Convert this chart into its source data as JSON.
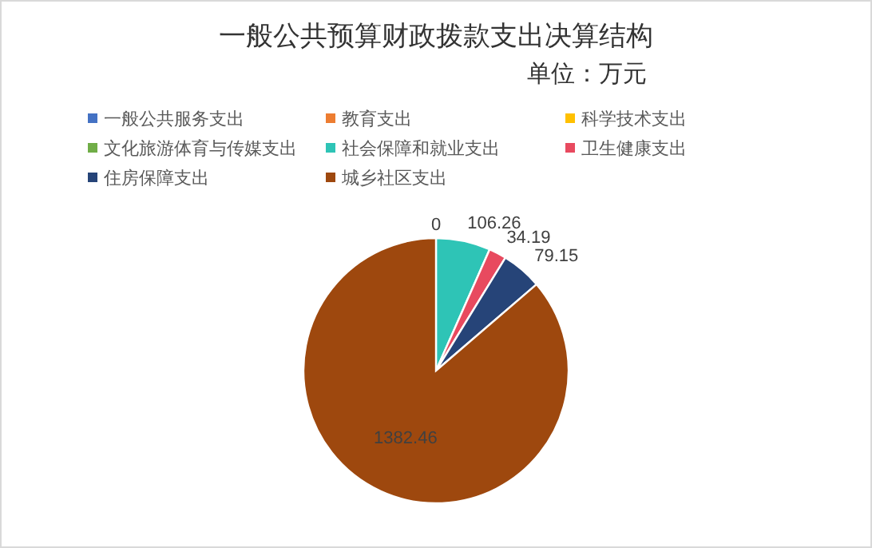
{
  "chart_data": {
    "type": "pie",
    "title": "一般公共预算财政拨款支出决算结构",
    "subtitle": "单位：万元",
    "categories": [
      "一般公共服务支出",
      "教育支出",
      "科学技术支出",
      "文化旅游体育与传媒支出",
      "社会保障和就业支出",
      "卫生健康支出",
      "住房保障支出",
      "城乡社区支出"
    ],
    "values": [
      0,
      0,
      0,
      0,
      106.26,
      34.19,
      79.15,
      1382.46
    ],
    "colors": [
      "#4472c4",
      "#ed7d31",
      "#ffc000",
      "#70ad47",
      "#2ec4b6",
      "#e84a5f",
      "#264478",
      "#9e480e"
    ],
    "value_labels": [
      "0",
      null,
      null,
      null,
      "106.26",
      "34.19",
      "79.15",
      "1382.46"
    ],
    "legend": "top"
  }
}
